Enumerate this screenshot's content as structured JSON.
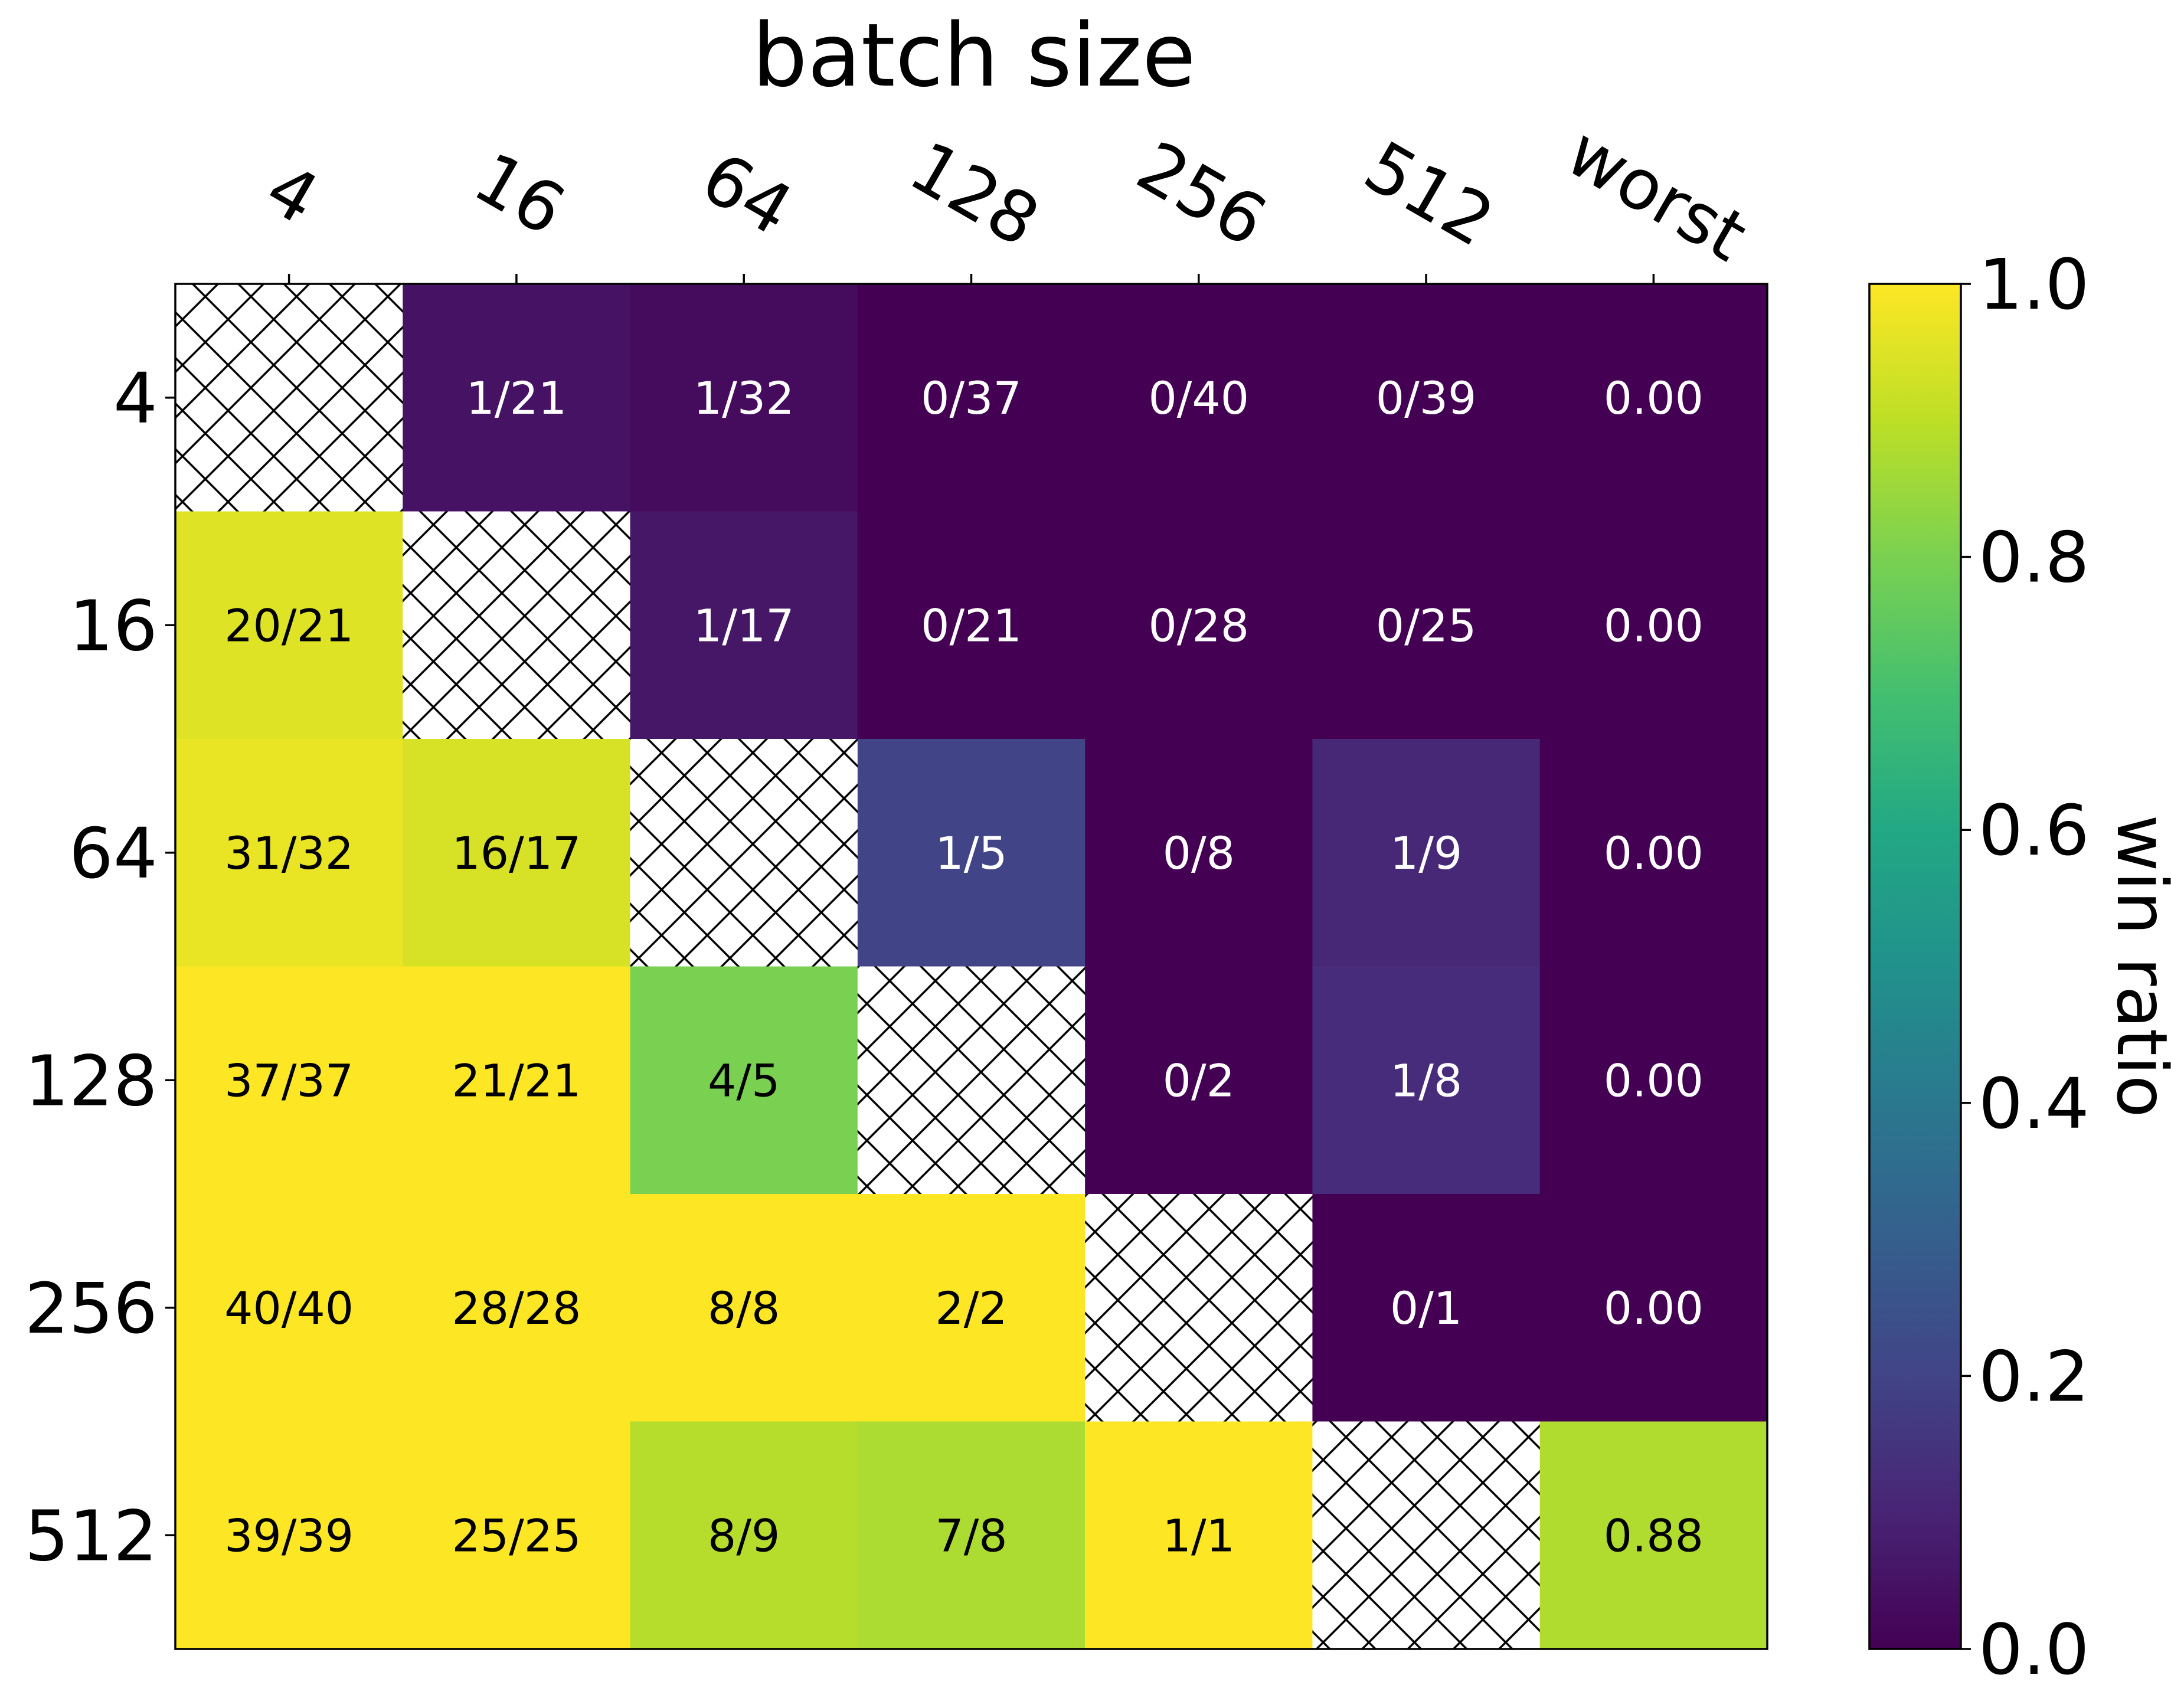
{
  "chart_data": {
    "type": "heatmap",
    "title": "batch size",
    "xlabel": "batch size",
    "ylabel": "",
    "x_categories": [
      "4",
      "16",
      "64",
      "128",
      "256",
      "512",
      "worst"
    ],
    "y_categories": [
      "4",
      "16",
      "64",
      "128",
      "256",
      "512"
    ],
    "cells": [
      [
        null,
        "1/21",
        "1/32",
        "0/37",
        "0/40",
        "0/39",
        "0.00"
      ],
      [
        "20/21",
        null,
        "1/17",
        "0/21",
        "0/28",
        "0/25",
        "0.00"
      ],
      [
        "31/32",
        "16/17",
        null,
        "1/5",
        "0/8",
        "1/9",
        "0.00"
      ],
      [
        "37/37",
        "21/21",
        "4/5",
        null,
        "0/2",
        "1/8",
        "0.00"
      ],
      [
        "40/40",
        "28/28",
        "8/8",
        "2/2",
        null,
        "0/1",
        "0.00"
      ],
      [
        "39/39",
        "25/25",
        "8/9",
        "7/8",
        "1/1",
        null,
        "0.88"
      ]
    ],
    "values": [
      [
        null,
        0.048,
        0.031,
        0.0,
        0.0,
        0.0,
        0.0
      ],
      [
        0.952,
        null,
        0.059,
        0.0,
        0.0,
        0.0,
        0.0
      ],
      [
        0.969,
        0.941,
        null,
        0.2,
        0.0,
        0.111,
        0.0
      ],
      [
        1.0,
        1.0,
        0.8,
        null,
        0.0,
        0.125,
        0.0
      ],
      [
        1.0,
        1.0,
        1.0,
        1.0,
        null,
        0.0,
        0.0
      ],
      [
        1.0,
        1.0,
        0.889,
        0.875,
        1.0,
        null,
        0.88
      ]
    ],
    "diagonal_pattern": "hatched",
    "colorbar": {
      "label": "win ratio",
      "range": [
        0.0,
        1.0
      ],
      "ticks": [
        "0.0",
        "0.2",
        "0.4",
        "0.6",
        "0.8",
        "1.0"
      ],
      "colormap": "viridis"
    }
  }
}
